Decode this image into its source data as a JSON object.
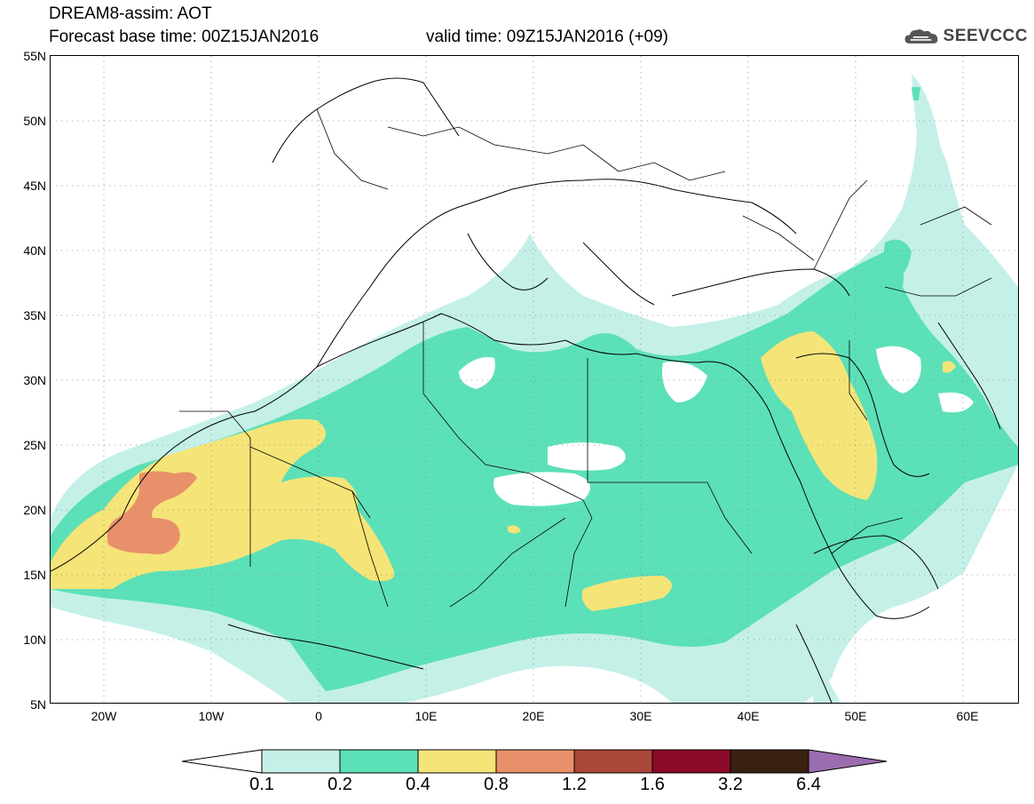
{
  "title": {
    "line1": "DREAM8-assim: AOT",
    "line2": "Forecast base time: 00Z15JAN2016",
    "valid": "valid time: 09Z15JAN2016 (+09)"
  },
  "logo": {
    "text": "SEEVCCC",
    "icon": "cloud-icon"
  },
  "map": {
    "variable": "AOT",
    "lat_labels": [
      "55N",
      "50N",
      "45N",
      "40N",
      "35N",
      "30N",
      "25N",
      "20N",
      "15N",
      "10N",
      "5N"
    ],
    "lon_labels": [
      "20W",
      "10W",
      "0",
      "10E",
      "20E",
      "30E",
      "40E",
      "50E",
      "60E"
    ],
    "lat_range": [
      5,
      55
    ],
    "lon_range": [
      -25,
      65
    ]
  },
  "colorbar": {
    "levels": [
      "0.1",
      "0.2",
      "0.4",
      "0.8",
      "1.2",
      "1.6",
      "3.2",
      "6.4"
    ],
    "colors": [
      "#c4f0e8",
      "#5ce0b8",
      "#f5e478",
      "#e8906a",
      "#a84838",
      "#8a0a28",
      "#3a2010",
      "#9a6cb0"
    ]
  },
  "colors": {
    "c01": "#c4f0e8",
    "c02": "#5ce0b8",
    "c04": "#f5e478",
    "c08": "#e8906a"
  }
}
